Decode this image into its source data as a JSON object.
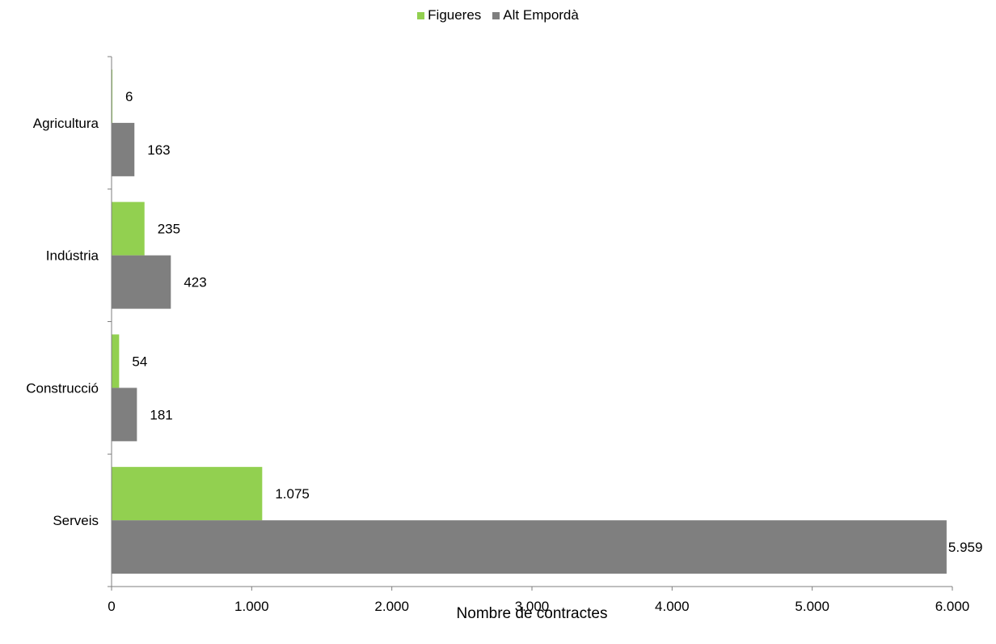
{
  "colors": {
    "figueres": "#92d050",
    "alt_emporda": "#7f7f7f",
    "axis": "#7f7f7f"
  },
  "chart_data": {
    "type": "bar",
    "orientation": "horizontal",
    "title": "",
    "xlabel": "Nombre de contractes",
    "ylabel": "",
    "xlim": [
      0,
      6000
    ],
    "x_ticks": [
      0,
      1000,
      2000,
      3000,
      4000,
      5000,
      6000
    ],
    "x_tick_labels": [
      "0",
      "1.000",
      "2.000",
      "3.000",
      "4.000",
      "5.000",
      "6.000"
    ],
    "grid": false,
    "legend_position": "top",
    "categories": [
      "Agricultura",
      "Indústria",
      "Construcció",
      "Serveis"
    ],
    "series": [
      {
        "name": "Figueres",
        "color": "#92d050",
        "values": [
          6,
          235,
          54,
          1075
        ],
        "labels": [
          "6",
          "235",
          "54",
          "1.075"
        ]
      },
      {
        "name": "Alt Empordà",
        "color": "#7f7f7f",
        "values": [
          163,
          423,
          181,
          5959
        ],
        "labels": [
          "163",
          "423",
          "181",
          "5.959"
        ]
      }
    ]
  }
}
